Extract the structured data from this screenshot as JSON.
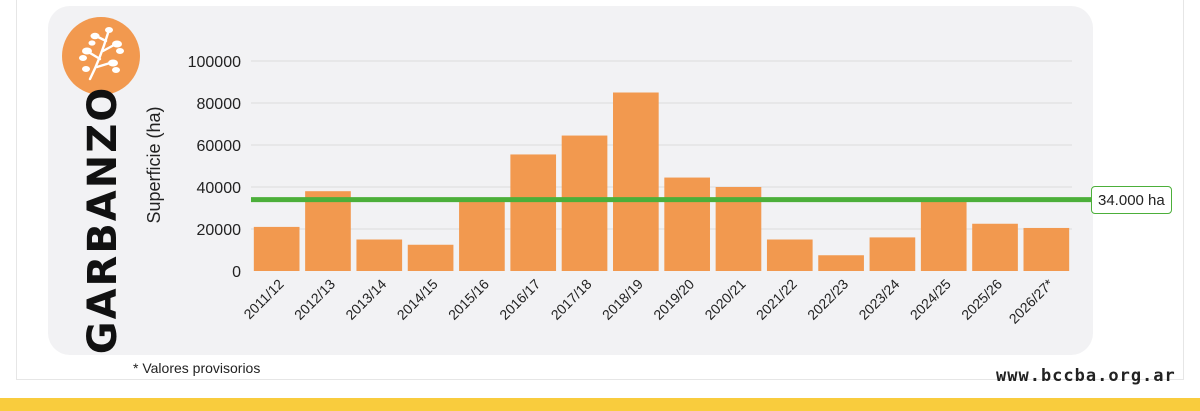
{
  "crop": {
    "name": "GARBANZO",
    "icon": "chickpea-plant-icon"
  },
  "chart_data": {
    "type": "bar",
    "ylabel": "Superficie (ha)",
    "xlabel": "",
    "ylim": [
      0,
      100000
    ],
    "yticks": [
      0,
      20000,
      40000,
      60000,
      80000,
      100000
    ],
    "grid": true,
    "categories": [
      "2011/12",
      "2012/13",
      "2013/14",
      "2014/15",
      "2015/16",
      "2016/17",
      "2017/18",
      "2018/19",
      "2019/20",
      "2020/21",
      "2021/22",
      "2022/23",
      "2023/24",
      "2024/25",
      "2025/26",
      "2026/27*"
    ],
    "values": [
      21000,
      38000,
      15000,
      12500,
      33000,
      55500,
      64500,
      85000,
      44500,
      40000,
      15000,
      7500,
      16000,
      34000,
      22500,
      20500
    ],
    "reference_line": {
      "value": 34000,
      "label": "34.000 ha"
    },
    "colors": {
      "bar": "#f2994f",
      "reference": "#4caf3a",
      "grid": "#dcdcdc"
    }
  },
  "footnote": "*  Valores provisorios",
  "website": "www.bccba.org.ar"
}
